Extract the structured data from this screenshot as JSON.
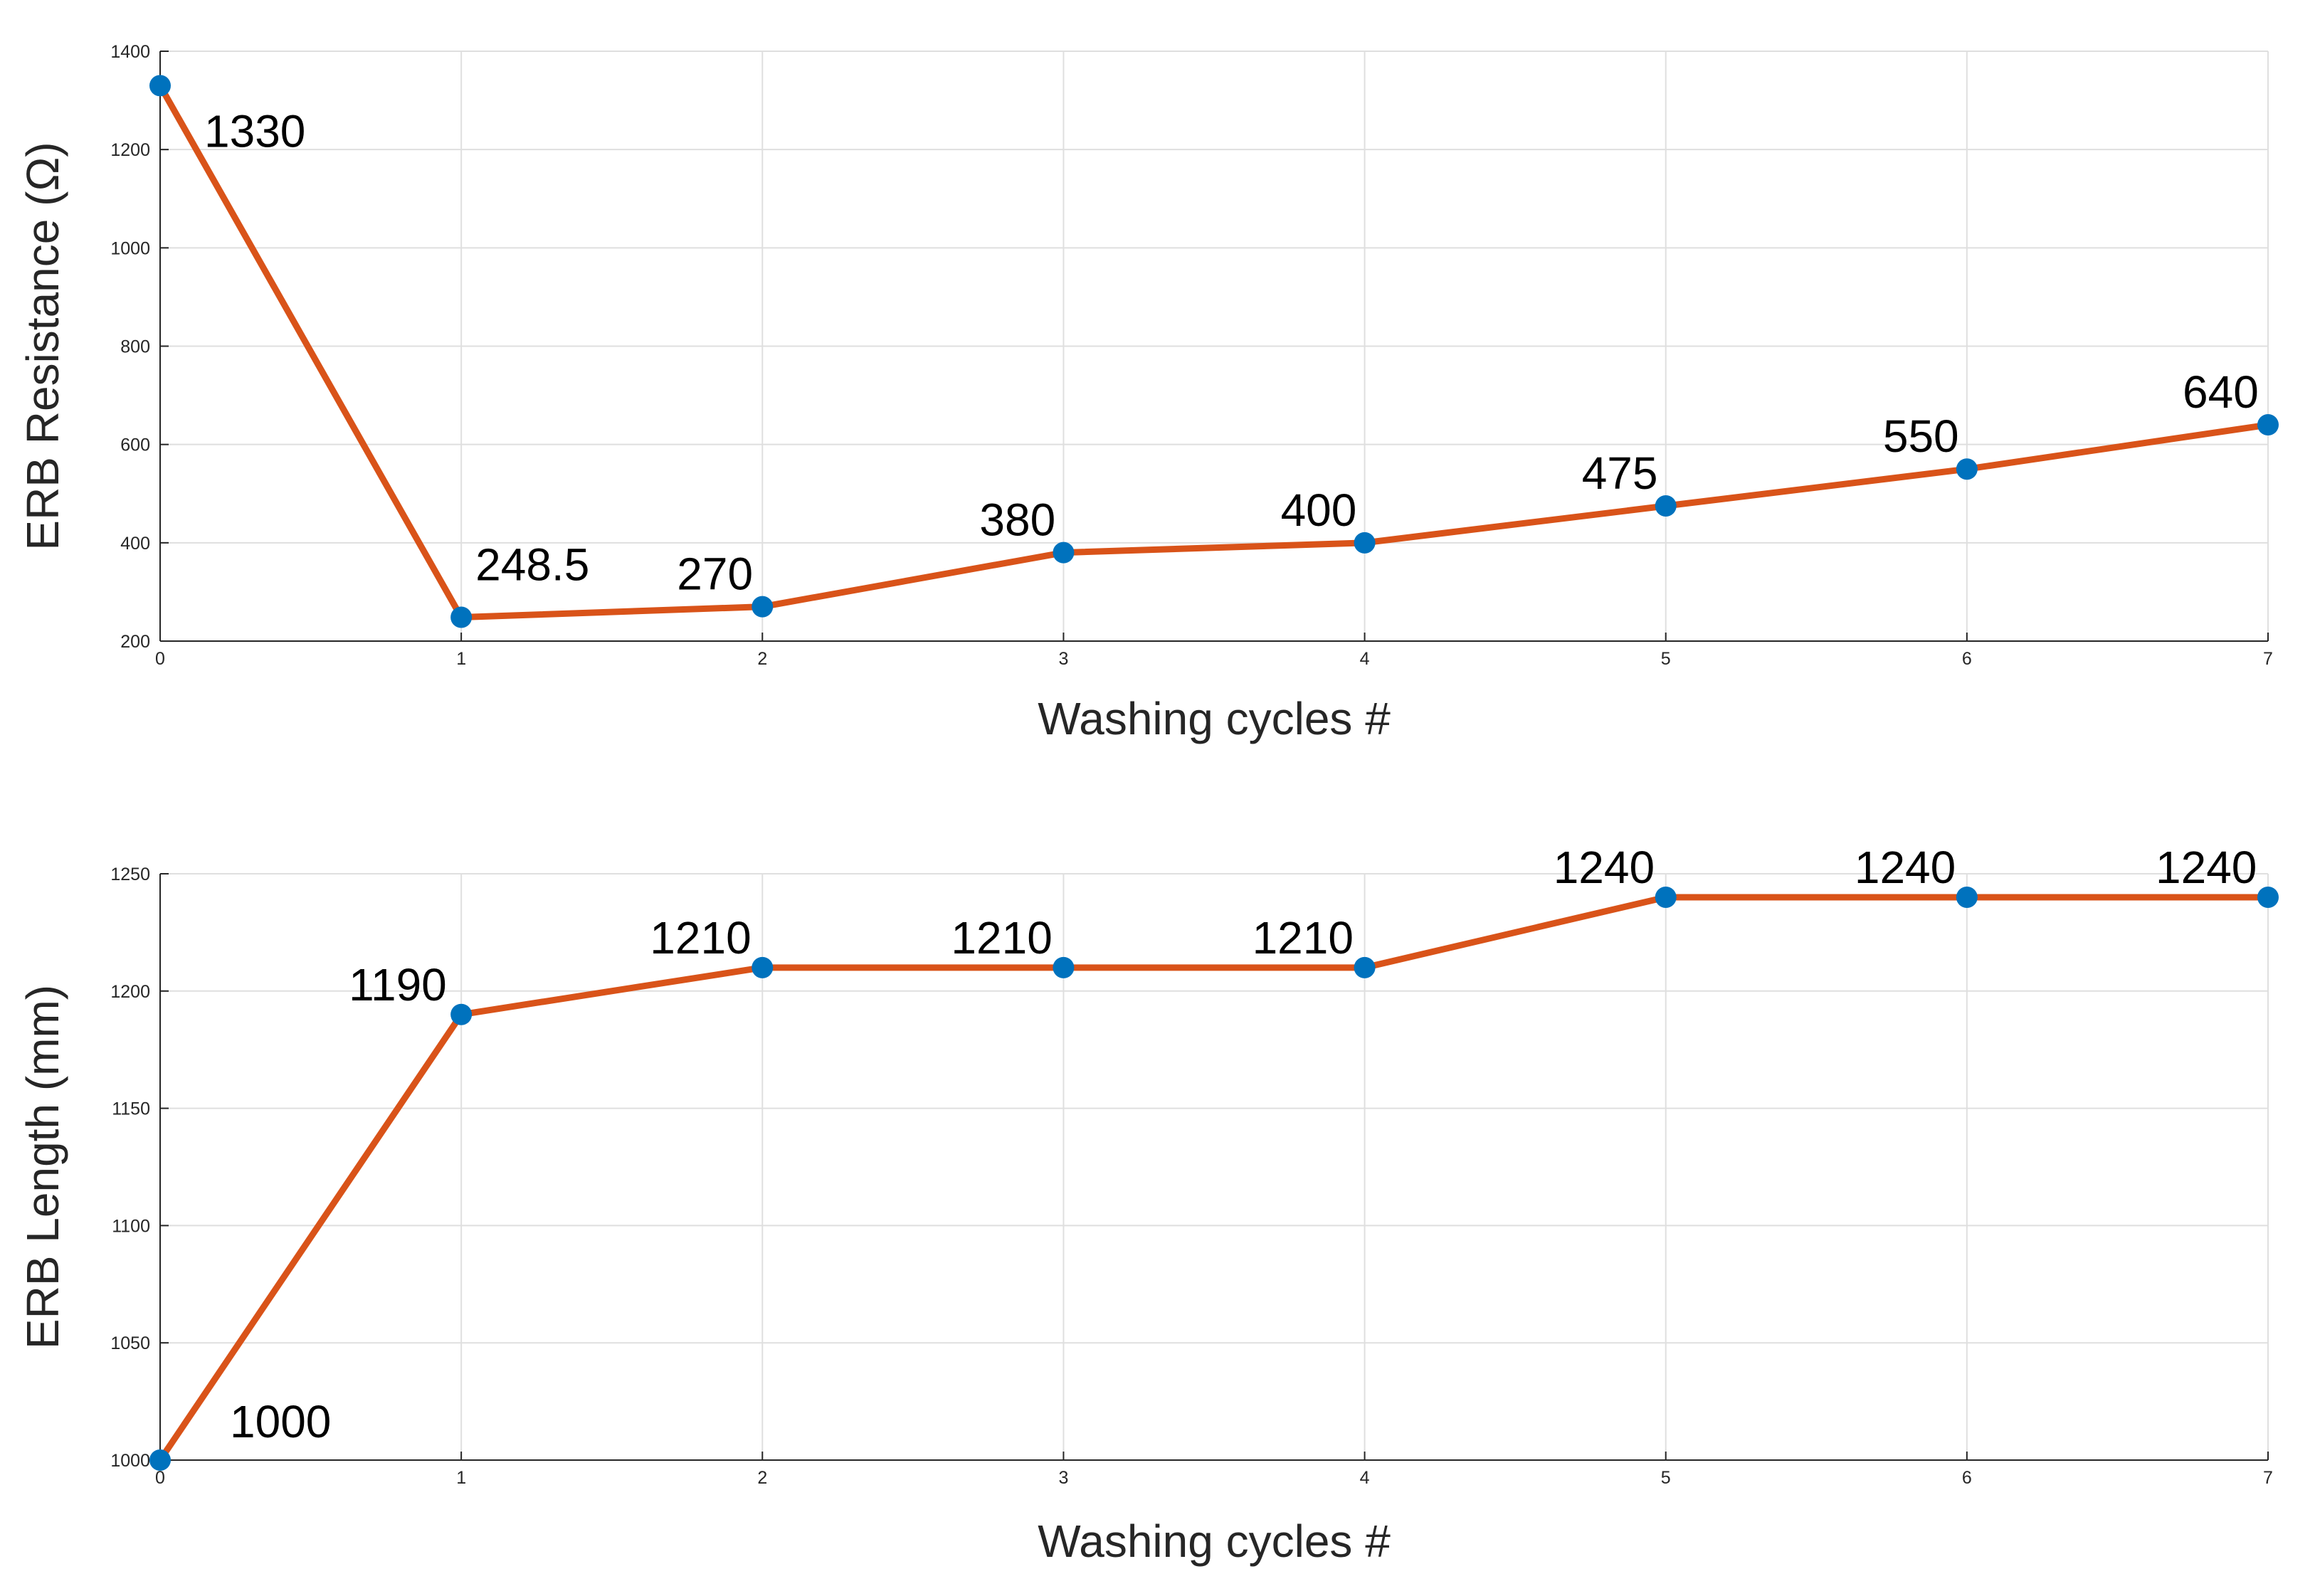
{
  "chart_data": [
    {
      "type": "line",
      "xlabel": "Washing cycles #",
      "ylabel": "ERB Resistance (Ω)",
      "x": [
        0,
        1,
        2,
        3,
        4,
        5,
        6,
        7
      ],
      "xlim": [
        0,
        7
      ],
      "ylim": [
        200,
        1400
      ],
      "xticks": [
        0,
        1,
        2,
        3,
        4,
        5,
        6,
        7
      ],
      "yticks": [
        200,
        400,
        600,
        800,
        1000,
        1200,
        1400
      ],
      "grid": true,
      "series": [
        {
          "values": [
            1330,
            248.5,
            270,
            380,
            400,
            475,
            550,
            640
          ],
          "line_color": "#D95319",
          "marker_color": "#0072BD"
        }
      ],
      "data_labels": [
        "1330",
        "248.5",
        "270",
        "380",
        "400",
        "475",
        "550",
        "640"
      ]
    },
    {
      "type": "line",
      "xlabel": "Washing cycles #",
      "ylabel": "ERB Length (mm)",
      "x": [
        0,
        1,
        2,
        3,
        4,
        5,
        6,
        7
      ],
      "xlim": [
        0,
        7
      ],
      "ylim": [
        1000,
        1250
      ],
      "xticks": [
        0,
        1,
        2,
        3,
        4,
        5,
        6,
        7
      ],
      "yticks": [
        1000,
        1050,
        1100,
        1150,
        1200,
        1250
      ],
      "grid": true,
      "series": [
        {
          "values": [
            1000,
            1190,
            1210,
            1210,
            1210,
            1240,
            1240,
            1240
          ],
          "line_color": "#D95319",
          "marker_color": "#0072BD"
        }
      ],
      "data_labels": [
        "1000",
        "1190",
        "1210",
        "1210",
        "1210",
        "1240",
        "1240",
        "1240"
      ]
    }
  ]
}
